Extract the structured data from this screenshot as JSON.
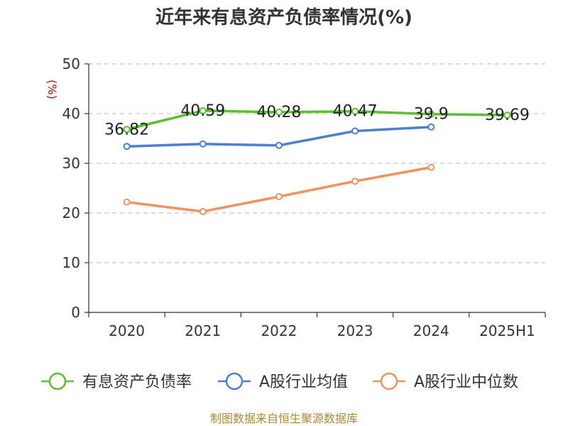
{
  "chart_data": {
    "type": "line",
    "title": "近年来有息资产负债率情况(%)",
    "unit_label": "(%)",
    "categories": [
      "2020",
      "2021",
      "2022",
      "2023",
      "2024",
      "2025H1"
    ],
    "ylim": [
      0,
      50
    ],
    "yticks": [
      "0",
      "10",
      "20",
      "30",
      "40",
      "50"
    ],
    "grid": true,
    "legend_position": "bottom",
    "series": [
      {
        "name": "有息资产负债率",
        "color": "#5dbf2d",
        "values": [
          36.82,
          40.59,
          40.28,
          40.47,
          39.9,
          39.69
        ],
        "labels": [
          "36.82",
          "40.59",
          "40.28",
          "40.47",
          "39.9",
          "39.69"
        ]
      },
      {
        "name": "A股行业均值",
        "color": "#4a7fd6",
        "values": [
          33.4,
          33.9,
          33.6,
          36.5,
          37.3,
          null
        ]
      },
      {
        "name": "A股行业中位数",
        "color": "#f4915f",
        "values": [
          22.2,
          20.3,
          23.3,
          26.4,
          29.2,
          null
        ]
      }
    ]
  },
  "source": "制图数据来自恒生聚源数据库"
}
